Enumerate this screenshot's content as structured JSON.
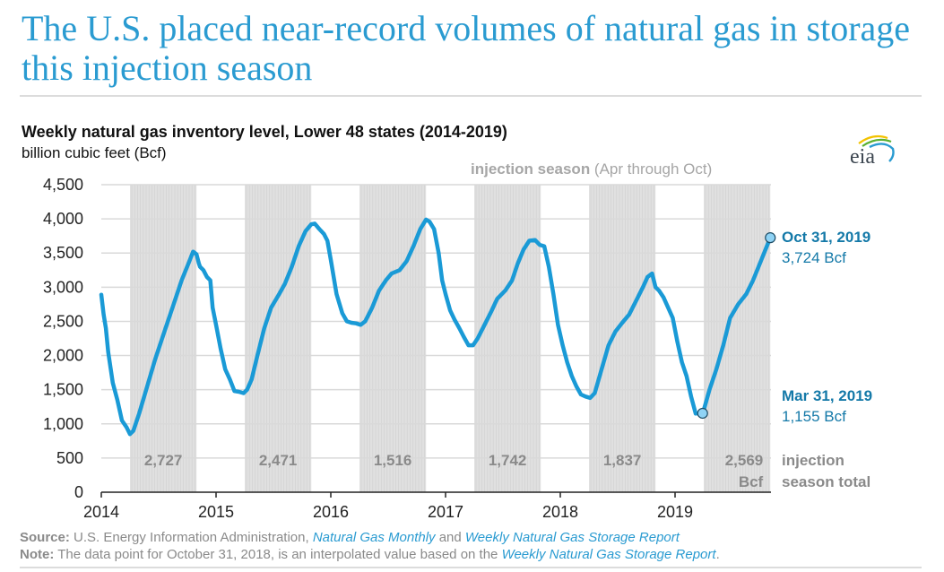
{
  "headline": "The U.S. placed near-record volumes of natural gas in storage this injection season",
  "logo": {
    "name": "eia-logo",
    "text": "eia"
  },
  "colors": {
    "line": "#1a9ad6",
    "marker_fill": "#8fd3f5",
    "annotation": "#1479a8",
    "shade": "#e0e0e0",
    "grid": "#d9d9d9",
    "gray_text": "#8a8a8a",
    "headline": "#2a9bd1"
  },
  "chart_data": {
    "type": "line",
    "title": "Weekly natural gas inventory level, Lower 48 states (2014-2019)",
    "ylabel": "billion cubic feet (Bcf)",
    "xlabel": "",
    "ylim": [
      0,
      4500
    ],
    "xlim": [
      2014.0,
      2019.83
    ],
    "yticks": [
      0,
      500,
      1000,
      1500,
      2000,
      2500,
      3000,
      3500,
      4000,
      4500
    ],
    "ytick_labels": [
      "0",
      "500",
      "1,000",
      "1,500",
      "2,000",
      "2,500",
      "3,000",
      "3,500",
      "4,000",
      "4,500"
    ],
    "xticks": [
      2014,
      2015,
      2016,
      2017,
      2018,
      2019
    ],
    "xtick_labels": [
      "2014",
      "2015",
      "2016",
      "2017",
      "2018",
      "2019"
    ],
    "grid": true,
    "shade_label_bold": "injection season",
    "shade_label_rest": " (Apr through Oct)",
    "shaded_periods": [
      {
        "start": 2014.25,
        "end": 2014.83,
        "total": "2,727"
      },
      {
        "start": 2015.25,
        "end": 2015.83,
        "total": "2,471"
      },
      {
        "start": 2016.25,
        "end": 2016.83,
        "total": "1,516"
      },
      {
        "start": 2017.25,
        "end": 2017.83,
        "total": "1,742"
      },
      {
        "start": 2018.25,
        "end": 2018.83,
        "total": "1,837"
      },
      {
        "start": 2019.25,
        "end": 2019.83,
        "total": "2,569",
        "unit": "Bcf"
      }
    ],
    "totals_legend": [
      "injection",
      "season total"
    ],
    "series": [
      {
        "name": "Weekly inventory",
        "x": [
          2014.0,
          2014.02,
          2014.04,
          2014.06,
          2014.1,
          2014.14,
          2014.18,
          2014.22,
          2014.25,
          2014.28,
          2014.33,
          2014.4,
          2014.47,
          2014.55,
          2014.62,
          2014.7,
          2014.76,
          2014.8,
          2014.83,
          2014.85,
          2014.86,
          2014.89,
          2014.92,
          2014.95,
          2014.97,
          2015.0,
          2015.04,
          2015.08,
          2015.12,
          2015.16,
          2015.2,
          2015.24,
          2015.27,
          2015.31,
          2015.36,
          2015.42,
          2015.48,
          2015.55,
          2015.6,
          2015.66,
          2015.72,
          2015.78,
          2015.83,
          2015.86,
          2015.9,
          2015.94,
          2015.97,
          2016.0,
          2016.05,
          2016.1,
          2016.14,
          2016.18,
          2016.22,
          2016.26,
          2016.3,
          2016.36,
          2016.42,
          2016.48,
          2016.53,
          2016.6,
          2016.66,
          2016.72,
          2016.78,
          2016.83,
          2016.86,
          2016.9,
          2016.94,
          2016.97,
          2017.0,
          2017.04,
          2017.08,
          2017.12,
          2017.16,
          2017.2,
          2017.24,
          2017.28,
          2017.34,
          2017.4,
          2017.45,
          2017.52,
          2017.58,
          2017.63,
          2017.68,
          2017.73,
          2017.78,
          2017.82,
          2017.86,
          2017.9,
          2017.94,
          2017.98,
          2018.02,
          2018.06,
          2018.1,
          2018.14,
          2018.18,
          2018.22,
          2018.26,
          2018.3,
          2018.36,
          2018.42,
          2018.48,
          2018.54,
          2018.6,
          2018.66,
          2018.72,
          2018.76,
          2018.8,
          2018.83,
          2018.86,
          2018.9,
          2018.94,
          2018.98,
          2019.02,
          2019.06,
          2019.1,
          2019.14,
          2019.18,
          2019.22,
          2019.25,
          2019.3,
          2019.36,
          2019.42,
          2019.48,
          2019.55,
          2019.62,
          2019.68,
          2019.74,
          2019.8,
          2019.83
        ],
        "y": [
          2890,
          2600,
          2400,
          2050,
          1600,
          1350,
          1050,
          950,
          850,
          900,
          1150,
          1550,
          1950,
          2350,
          2700,
          3100,
          3350,
          3520,
          3480,
          3350,
          3300,
          3250,
          3150,
          3100,
          2700,
          2450,
          2100,
          1800,
          1650,
          1480,
          1470,
          1450,
          1500,
          1650,
          2000,
          2400,
          2700,
          2900,
          3050,
          3300,
          3600,
          3820,
          3920,
          3930,
          3850,
          3780,
          3680,
          3400,
          2900,
          2620,
          2500,
          2480,
          2470,
          2450,
          2500,
          2700,
          2950,
          3100,
          3200,
          3250,
          3380,
          3600,
          3850,
          3990,
          3960,
          3850,
          3500,
          3100,
          2900,
          2660,
          2520,
          2400,
          2270,
          2150,
          2150,
          2250,
          2450,
          2650,
          2830,
          2950,
          3100,
          3350,
          3550,
          3680,
          3690,
          3620,
          3600,
          3300,
          2900,
          2450,
          2150,
          1900,
          1700,
          1550,
          1430,
          1400,
          1380,
          1450,
          1800,
          2150,
          2350,
          2480,
          2600,
          2800,
          3000,
          3150,
          3200,
          3000,
          2950,
          2850,
          2700,
          2550,
          2200,
          1900,
          1700,
          1400,
          1150,
          1155,
          1200,
          1500,
          1800,
          2150,
          2550,
          2750,
          2900,
          3100,
          3350,
          3600,
          3724
        ]
      }
    ],
    "annotations": [
      {
        "label": "Oct 31, 2019",
        "value": "3,724 Bcf",
        "x": 2019.83,
        "y": 3724
      },
      {
        "label": "Mar 31, 2019",
        "value": "1,155 Bcf",
        "x": 2019.24,
        "y": 1155
      }
    ]
  },
  "footer": {
    "source_label": "Source:",
    "source_text": " U.S. Energy Information Administration, ",
    "source_link1": "Natural Gas Monthly",
    "source_and": " and ",
    "source_link2": "Weekly Natural Gas Storage Report",
    "note_label": "Note:",
    "note_text": " The data point for October 31, 2018, is an interpolated value based on the ",
    "note_link": "Weekly Natural Gas Storage Report",
    "note_end": "."
  }
}
